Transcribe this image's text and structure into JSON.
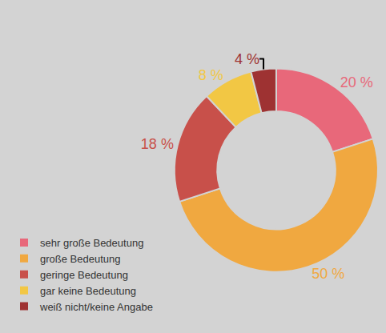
{
  "chart_data": {
    "type": "pie",
    "categories": [
      "sehr große Bedeutung",
      "große Bedeutung",
      "geringe Bedeutung",
      "gar keine Bedeutung",
      "weiß nicht/keine Angabe"
    ],
    "values": [
      20,
      50,
      18,
      8,
      4
    ],
    "value_labels": [
      "20 %",
      "50 %",
      "18 %",
      "8 %",
      "4 %"
    ],
    "colors": [
      "#e8687a",
      "#f0a840",
      "#c8504a",
      "#f2c744",
      "#9e3232"
    ],
    "data_labels": true,
    "legend": "bottom left"
  }
}
